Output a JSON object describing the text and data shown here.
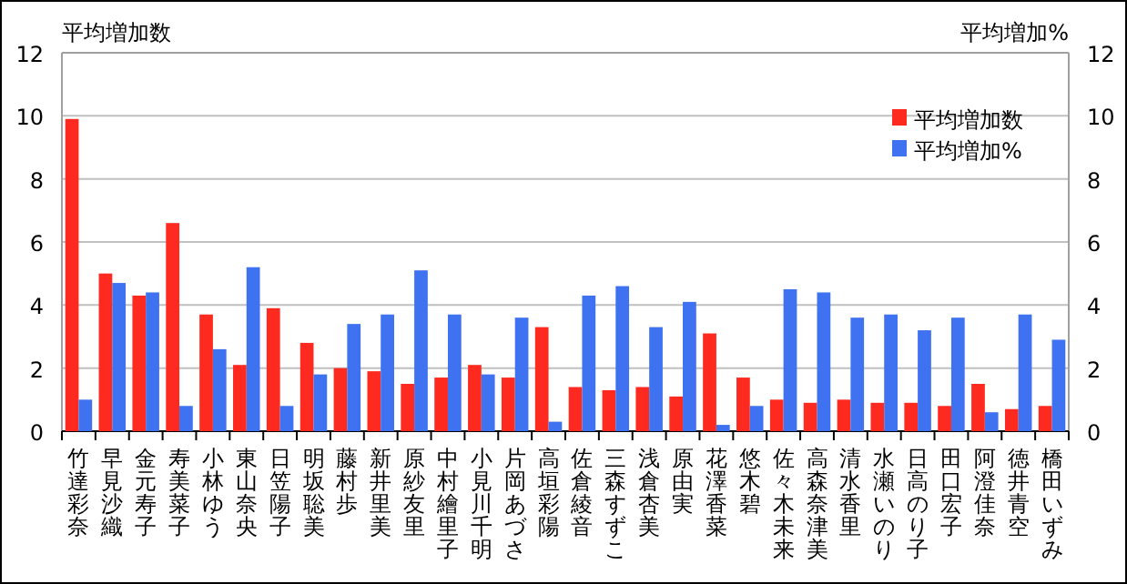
{
  "chart_data": {
    "type": "bar",
    "ylabel": "平均増加数",
    "y2label": "平均増加%",
    "categories": [
      "竹達彩奈",
      "早見沙織",
      "金元寿子",
      "寿美菜子",
      "小林ゆう",
      "東山奈央",
      "日笠陽子",
      "明坂聡美",
      "藤村歩",
      "新井里美",
      "原紗友里",
      "中村繪里子",
      "小見川千明",
      "片岡あづさ",
      "高垣彩陽",
      "佐倉綾音",
      "三森すずこ",
      "浅倉杏美",
      "原由実",
      "花澤香菜",
      "悠木碧",
      "佐々木未来",
      "高森奈津美",
      "清水香里",
      "水瀬いのり",
      "日高のり子",
      "田口宏子",
      "阿澄佳奈",
      "徳井青空",
      "橋田いずみ"
    ],
    "series": [
      {
        "name": "平均増加数",
        "color": "#ff2a1f",
        "values": [
          9.9,
          5.0,
          4.3,
          6.6,
          3.7,
          2.1,
          3.9,
          2.8,
          2.0,
          1.9,
          1.5,
          1.7,
          2.1,
          1.7,
          3.3,
          1.4,
          1.3,
          1.4,
          1.1,
          3.1,
          1.7,
          1.0,
          0.9,
          1.0,
          0.9,
          0.9,
          0.8,
          1.5,
          0.7,
          0.8
        ]
      },
      {
        "name": "平均増加%",
        "color": "#3f72f0",
        "axis": "y2",
        "values": [
          1.0,
          4.7,
          4.4,
          0.8,
          2.6,
          5.2,
          0.8,
          1.8,
          3.4,
          3.7,
          5.1,
          3.7,
          1.8,
          3.6,
          0.3,
          4.3,
          4.6,
          3.3,
          4.1,
          0.2,
          0.8,
          4.5,
          4.4,
          3.6,
          3.7,
          3.2,
          3.6,
          0.6,
          3.7,
          2.9
        ]
      }
    ],
    "ylim": [
      0,
      12
    ],
    "yticks": [
      0,
      2,
      4,
      6,
      8,
      10,
      12
    ],
    "y2lim": [
      0,
      12
    ],
    "y2ticks": [
      0,
      2,
      4,
      6,
      8,
      10,
      12
    ],
    "grid": "y",
    "legend": "top right"
  }
}
